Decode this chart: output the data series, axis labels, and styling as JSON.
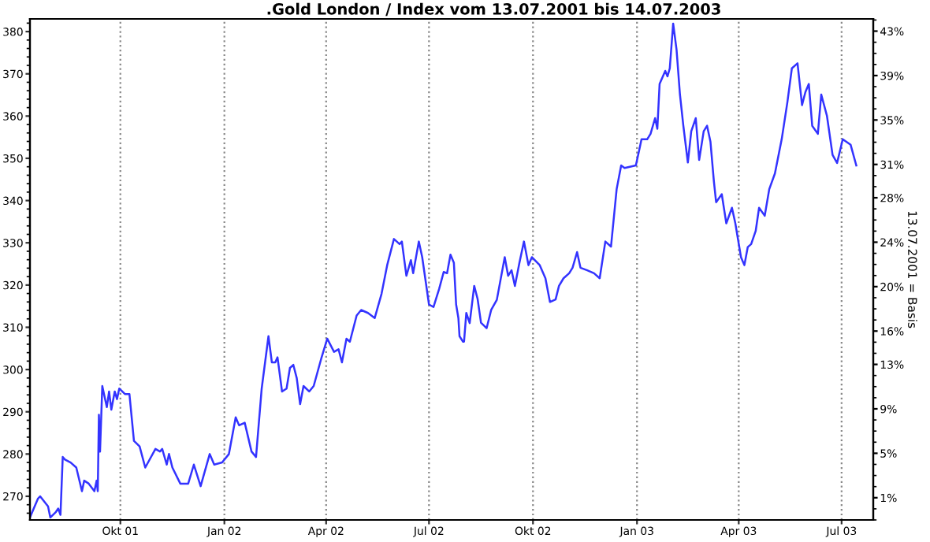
{
  "chart_data": {
    "type": "line",
    "title": ".Gold London / Index vom 13.07.2001 bis 14.07.2003",
    "y2label": "13.07.2001 = Basis",
    "x": [
      "2001-07-13",
      "2001-07-20",
      "2001-07-22",
      "2001-07-29",
      "2001-07-31",
      "2001-08-05",
      "2001-08-07",
      "2001-08-09",
      "2001-08-11",
      "2001-08-13",
      "2001-08-18",
      "2001-08-23",
      "2001-08-28",
      "2001-08-30",
      "2001-09-03",
      "2001-09-08",
      "2001-09-10",
      "2001-09-11",
      "2001-09-12",
      "2001-09-13",
      "2001-09-15",
      "2001-09-19",
      "2001-09-21",
      "2001-09-23",
      "2001-09-26",
      "2001-09-28",
      "2001-09-30",
      "2001-10-05",
      "2001-10-09",
      "2001-10-13",
      "2001-10-18",
      "2001-10-23",
      "2001-11-01",
      "2001-11-05",
      "2001-11-07",
      "2001-11-11",
      "2001-11-13",
      "2001-11-16",
      "2001-11-23",
      "2001-11-30",
      "2001-12-05",
      "2001-12-11",
      "2001-12-19",
      "2001-12-23",
      "2001-12-30",
      "2002-01-05",
      "2002-01-11",
      "2002-01-14",
      "2002-01-19",
      "2002-01-25",
      "2002-01-29",
      "2002-02-03",
      "2002-02-09",
      "2002-02-12",
      "2002-02-15",
      "2002-02-17",
      "2002-02-21",
      "2002-02-25",
      "2002-02-28",
      "2002-03-03",
      "2002-03-06",
      "2002-03-09",
      "2002-03-12",
      "2002-03-17",
      "2002-03-21",
      "2002-03-28",
      "2002-04-02",
      "2002-04-08",
      "2002-04-12",
      "2002-04-15",
      "2002-04-19",
      "2002-04-22",
      "2002-04-28",
      "2002-05-02",
      "2002-05-08",
      "2002-05-14",
      "2002-05-20",
      "2002-05-25",
      "2002-05-31",
      "2002-06-05",
      "2002-06-07",
      "2002-06-11",
      "2002-06-15",
      "2002-06-17",
      "2002-06-22",
      "2002-06-25",
      "2002-07-01",
      "2002-07-05",
      "2002-07-10",
      "2002-07-14",
      "2002-07-17",
      "2002-07-20",
      "2002-07-23",
      "2002-07-25",
      "2002-07-27",
      "2002-07-28",
      "2002-07-31",
      "2002-08-01",
      "2002-08-03",
      "2002-08-06",
      "2002-08-10",
      "2002-08-13",
      "2002-08-16",
      "2002-08-21",
      "2002-08-25",
      "2002-08-30",
      "2002-09-06",
      "2002-09-09",
      "2002-09-12",
      "2002-09-15",
      "2002-09-19",
      "2002-09-23",
      "2002-09-27",
      "2002-09-30",
      "2002-10-07",
      "2002-10-12",
      "2002-10-16",
      "2002-10-21",
      "2002-10-24",
      "2002-10-28",
      "2002-11-02",
      "2002-11-05",
      "2002-11-09",
      "2002-11-12",
      "2002-11-18",
      "2002-11-24",
      "2002-11-29",
      "2002-12-04",
      "2002-12-09",
      "2002-12-14",
      "2002-12-18",
      "2002-12-21",
      "2002-12-31",
      "2003-01-03",
      "2003-01-05",
      "2003-01-10",
      "2003-01-13",
      "2003-01-17",
      "2003-01-19",
      "2003-01-21",
      "2003-01-26",
      "2003-01-28",
      "2003-01-30",
      "2003-02-02",
      "2003-02-05",
      "2003-02-08",
      "2003-02-11",
      "2003-02-15",
      "2003-02-18",
      "2003-02-22",
      "2003-02-25",
      "2003-03-01",
      "2003-03-04",
      "2003-03-07",
      "2003-03-10",
      "2003-03-12",
      "2003-03-17",
      "2003-03-21",
      "2003-03-26",
      "2003-03-29",
      "2003-04-03",
      "2003-04-06",
      "2003-04-09",
      "2003-04-12",
      "2003-04-16",
      "2003-04-19",
      "2003-04-24",
      "2003-04-28",
      "2003-05-03",
      "2003-05-09",
      "2003-05-14",
      "2003-05-18",
      "2003-05-23",
      "2003-05-27",
      "2003-05-30",
      "2003-06-02",
      "2003-06-05",
      "2003-06-10",
      "2003-06-13",
      "2003-06-18",
      "2003-06-23",
      "2003-06-27",
      "2003-07-02",
      "2003-07-09",
      "2003-07-14"
    ],
    "series": [
      {
        "color": "#3333ff",
        "values": [
          265.0,
          269.4,
          270.0,
          267.6,
          265.0,
          266.3,
          267.1,
          265.6,
          279.3,
          278.7,
          278.0,
          276.8,
          271.2,
          273.7,
          273.0,
          271.2,
          273.7,
          271.2,
          289.3,
          280.6,
          296.1,
          291.1,
          294.8,
          290.5,
          294.8,
          293.0,
          295.5,
          294.2,
          294.2,
          283.1,
          281.8,
          276.8,
          281.2,
          280.6,
          281.2,
          277.5,
          280.0,
          276.8,
          273.0,
          273.0,
          277.5,
          272.4,
          280.0,
          277.5,
          278.0,
          280.0,
          288.7,
          286.8,
          287.4,
          280.6,
          279.3,
          295.5,
          307.9,
          301.7,
          301.7,
          302.9,
          294.8,
          295.5,
          300.4,
          301.1,
          298.0,
          291.8,
          296.1,
          294.8,
          296.1,
          302.9,
          307.3,
          304.2,
          304.8,
          301.7,
          307.3,
          306.6,
          312.8,
          314.1,
          313.4,
          312.2,
          317.9,
          324.7,
          330.9,
          329.7,
          330.3,
          322.2,
          325.9,
          322.8,
          330.3,
          326.6,
          315.4,
          314.8,
          319.1,
          323.1,
          322.8,
          327.2,
          325.3,
          315.4,
          312.2,
          307.9,
          306.6,
          306.6,
          313.4,
          311.0,
          319.8,
          316.7,
          311.1,
          309.8,
          314.1,
          316.5,
          326.6,
          322.2,
          323.5,
          319.8,
          325.3,
          330.3,
          324.7,
          326.6,
          324.7,
          321.6,
          316.0,
          316.6,
          319.8,
          321.6,
          322.8,
          324.1,
          327.8,
          324.1,
          323.5,
          322.8,
          321.6,
          330.3,
          329.1,
          342.7,
          348.3,
          347.7,
          348.3,
          352.0,
          354.5,
          354.5,
          355.8,
          359.5,
          357.0,
          367.6,
          370.7,
          369.4,
          371.3,
          381.9,
          375.7,
          365.1,
          357.7,
          349.0,
          356.4,
          359.5,
          349.6,
          356.4,
          357.7,
          353.9,
          344.6,
          339.6,
          341.5,
          334.6,
          338.3,
          334.6,
          326.6,
          324.7,
          329.0,
          329.7,
          332.8,
          338.3,
          336.4,
          342.7,
          346.4,
          354.5,
          363.2,
          371.3,
          372.5,
          362.6,
          365.7,
          367.6,
          357.7,
          355.8,
          365.1,
          360.1,
          350.8,
          348.9,
          354.5,
          353.2,
          348.3
        ]
      }
    ],
    "xlim": [
      "2001-07-13",
      "2003-07-29"
    ],
    "xticks": [
      {
        "value": "2001-10-01",
        "label": "Okt 01"
      },
      {
        "value": "2002-01-01",
        "label": "Jan 02"
      },
      {
        "value": "2002-04-01",
        "label": "Apr 02"
      },
      {
        "value": "2002-07-01",
        "label": "Jul 02"
      },
      {
        "value": "2002-10-01",
        "label": "Okt 02"
      },
      {
        "value": "2003-01-01",
        "label": "Jan 03"
      },
      {
        "value": "2003-04-01",
        "label": "Apr 03"
      },
      {
        "value": "2003-07-01",
        "label": "Jul 03"
      }
    ],
    "ylim": [
      264.4,
      383.0
    ],
    "yticks": [
      270,
      280,
      290,
      300,
      310,
      320,
      330,
      340,
      350,
      360,
      370,
      380
    ],
    "y2lim": [
      -1.0,
      44.1
    ],
    "y2ticks": [
      {
        "value": 1,
        "label": "1%"
      },
      {
        "value": 5,
        "label": "5%"
      },
      {
        "value": 9,
        "label": "9%"
      },
      {
        "value": 13,
        "label": "13%"
      },
      {
        "value": 16,
        "label": "16%"
      },
      {
        "value": 20,
        "label": "20%"
      },
      {
        "value": 24,
        "label": "24%"
      },
      {
        "value": 28,
        "label": "28%"
      },
      {
        "value": 31,
        "label": "31%"
      },
      {
        "value": 35,
        "label": "35%"
      },
      {
        "value": 39,
        "label": "39%"
      },
      {
        "value": 43,
        "label": "43%"
      }
    ],
    "grid": "x",
    "legend": false,
    "line_style": "solid",
    "marker": "none"
  }
}
